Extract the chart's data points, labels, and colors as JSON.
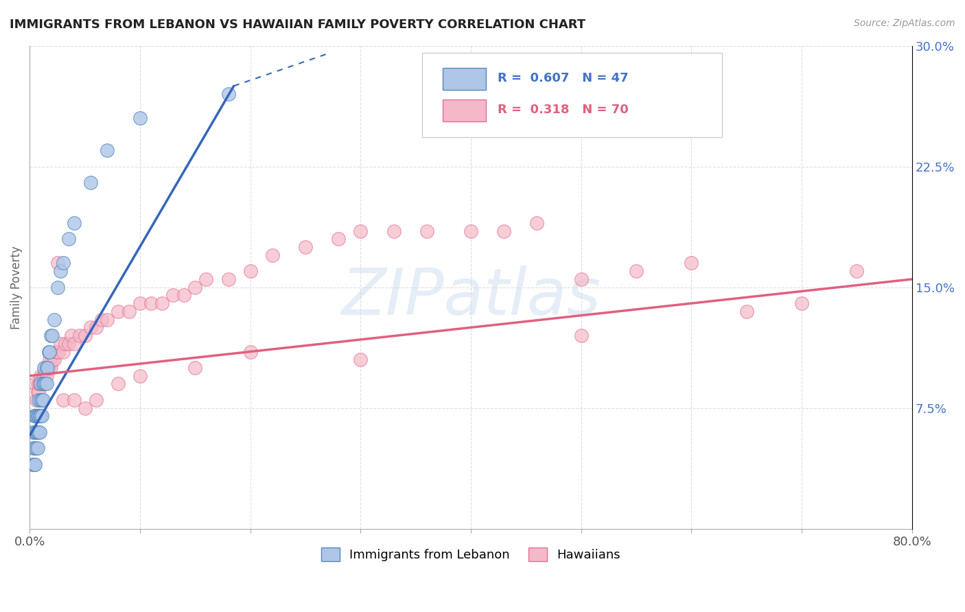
{
  "title": "IMMIGRANTS FROM LEBANON VS HAWAIIAN FAMILY POVERTY CORRELATION CHART",
  "source_text": "Source: ZipAtlas.com",
  "ylabel": "Family Poverty",
  "xlim": [
    0.0,
    0.8
  ],
  "ylim": [
    0.0,
    0.3
  ],
  "xticks": [
    0.0,
    0.1,
    0.2,
    0.3,
    0.4,
    0.5,
    0.6,
    0.7,
    0.8
  ],
  "ytick_positions": [
    0.075,
    0.15,
    0.225,
    0.3
  ],
  "ytick_labels": [
    "7.5%",
    "15.0%",
    "22.5%",
    "30.0%"
  ],
  "blue_fill": "#aec6e8",
  "blue_edge": "#5588bb",
  "pink_fill": "#f4b8c8",
  "pink_edge": "#e07090",
  "blue_line_color": "#3366bb",
  "pink_line_color": "#e06080",
  "blue_scatter": {
    "x": [
      0.002,
      0.003,
      0.003,
      0.004,
      0.004,
      0.005,
      0.005,
      0.005,
      0.005,
      0.006,
      0.006,
      0.006,
      0.007,
      0.007,
      0.007,
      0.008,
      0.008,
      0.008,
      0.009,
      0.009,
      0.01,
      0.01,
      0.01,
      0.011,
      0.011,
      0.012,
      0.012,
      0.013,
      0.013,
      0.014,
      0.015,
      0.015,
      0.016,
      0.017,
      0.018,
      0.019,
      0.02,
      0.022,
      0.025,
      0.028,
      0.03,
      0.035,
      0.04,
      0.055,
      0.07,
      0.1,
      0.18
    ],
    "y": [
      0.04,
      0.05,
      0.06,
      0.04,
      0.07,
      0.04,
      0.05,
      0.06,
      0.07,
      0.05,
      0.06,
      0.07,
      0.05,
      0.06,
      0.07,
      0.06,
      0.07,
      0.08,
      0.06,
      0.07,
      0.07,
      0.08,
      0.09,
      0.07,
      0.08,
      0.08,
      0.09,
      0.09,
      0.1,
      0.09,
      0.09,
      0.1,
      0.1,
      0.11,
      0.11,
      0.12,
      0.12,
      0.13,
      0.15,
      0.16,
      0.165,
      0.18,
      0.19,
      0.215,
      0.235,
      0.255,
      0.27
    ]
  },
  "pink_scatter": {
    "x": [
      0.005,
      0.006,
      0.007,
      0.008,
      0.008,
      0.009,
      0.01,
      0.01,
      0.011,
      0.012,
      0.013,
      0.014,
      0.015,
      0.016,
      0.017,
      0.018,
      0.019,
      0.02,
      0.022,
      0.024,
      0.026,
      0.028,
      0.03,
      0.032,
      0.035,
      0.038,
      0.04,
      0.045,
      0.05,
      0.055,
      0.06,
      0.065,
      0.07,
      0.08,
      0.09,
      0.1,
      0.11,
      0.12,
      0.13,
      0.14,
      0.15,
      0.16,
      0.18,
      0.2,
      0.22,
      0.25,
      0.28,
      0.3,
      0.33,
      0.36,
      0.4,
      0.43,
      0.46,
      0.5,
      0.55,
      0.6,
      0.65,
      0.7,
      0.75,
      0.025,
      0.03,
      0.04,
      0.05,
      0.06,
      0.08,
      0.1,
      0.15,
      0.2,
      0.3,
      0.5
    ],
    "y": [
      0.09,
      0.08,
      0.085,
      0.085,
      0.09,
      0.09,
      0.09,
      0.095,
      0.09,
      0.095,
      0.095,
      0.1,
      0.095,
      0.1,
      0.1,
      0.105,
      0.1,
      0.105,
      0.105,
      0.11,
      0.11,
      0.115,
      0.11,
      0.115,
      0.115,
      0.12,
      0.115,
      0.12,
      0.12,
      0.125,
      0.125,
      0.13,
      0.13,
      0.135,
      0.135,
      0.14,
      0.14,
      0.14,
      0.145,
      0.145,
      0.15,
      0.155,
      0.155,
      0.16,
      0.17,
      0.175,
      0.18,
      0.185,
      0.185,
      0.185,
      0.185,
      0.185,
      0.19,
      0.155,
      0.16,
      0.165,
      0.135,
      0.14,
      0.16,
      0.165,
      0.08,
      0.08,
      0.075,
      0.08,
      0.09,
      0.095,
      0.1,
      0.11,
      0.105,
      0.12
    ]
  },
  "blue_line": {
    "x": [
      0.0,
      0.185
    ],
    "y": [
      0.058,
      0.275
    ]
  },
  "blue_line_dashed": {
    "x": [
      0.185,
      0.27
    ],
    "y": [
      0.275,
      0.295
    ]
  },
  "pink_line": {
    "x": [
      0.0,
      0.8
    ],
    "y": [
      0.095,
      0.155
    ]
  },
  "watermark_text": "ZIPatlas",
  "background_color": "#ffffff",
  "grid_color": "#dddddd"
}
